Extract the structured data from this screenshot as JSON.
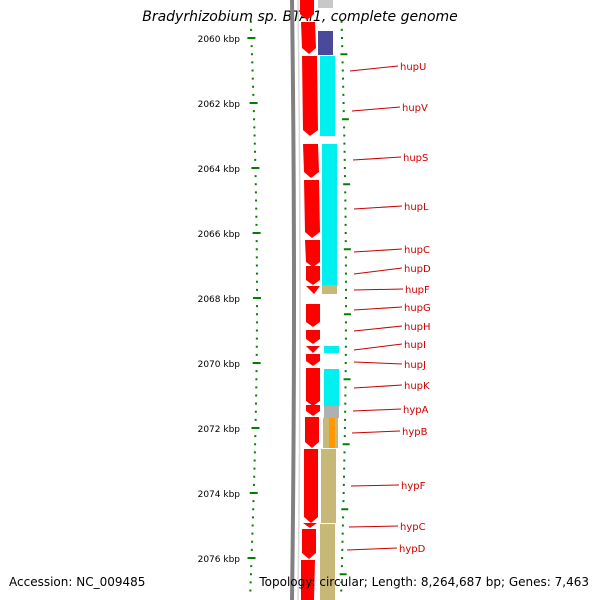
{
  "title": "Bradyrhizobium sp. BTAi1, complete genome",
  "footer": {
    "accession": "Accession: NC_009485",
    "summary": "Topology: circular; Length: 8,264,687 bp; Genes: 7,463"
  },
  "colors": {
    "forward_cds": "#ff0000",
    "backbone": "#808080",
    "ticks": "#008000",
    "label": "#cc0000",
    "cog_dark_blue": "#4a4a9a",
    "cog_cyan": "#00ffff",
    "cog_olive": "#c8b878",
    "cog_grey": "#b0b0b0",
    "cog_orange": "#ff9900"
  },
  "scale_labels": [
    "2060 kbp",
    "2062 kbp",
    "2064 kbp",
    "2066 kbp",
    "2068 kbp",
    "2070 kbp",
    "2072 kbp",
    "2074 kbp",
    "2076 kbp"
  ],
  "genes": [
    {
      "name": "hupU"
    },
    {
      "name": "hupV"
    },
    {
      "name": "hupS"
    },
    {
      "name": "hupL"
    },
    {
      "name": "hupC"
    },
    {
      "name": "hupD"
    },
    {
      "name": "hupF"
    },
    {
      "name": "hupG"
    },
    {
      "name": "hupH"
    },
    {
      "name": "hupI"
    },
    {
      "name": "hupJ"
    },
    {
      "name": "hupK"
    },
    {
      "name": "hypA"
    },
    {
      "name": "hypB"
    },
    {
      "name": "hypF"
    },
    {
      "name": "hypC"
    },
    {
      "name": "hypD"
    }
  ]
}
